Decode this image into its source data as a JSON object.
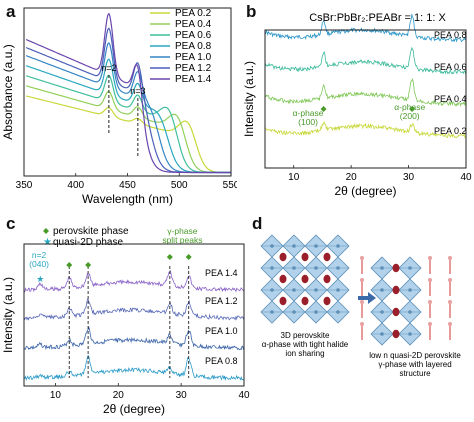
{
  "panels": {
    "a": {
      "letter": "a",
      "chart_data": {
        "type": "line",
        "xlabel": "Wavelength (nm)",
        "ylabel": "Absorbance (a.u.)",
        "xlim": [
          350,
          550
        ],
        "xticks": [
          "350",
          "400",
          "450",
          "500",
          "550"
        ],
        "annotations": [
          "n=2",
          "n=3"
        ],
        "peaks_nm": [
          432,
          460
        ],
        "legend_position": "top-right",
        "series": [
          {
            "name": "PEA 0.2",
            "color": "#c8d83a",
            "edge_nm": 515,
            "height": 0.38
          },
          {
            "name": "PEA 0.4",
            "color": "#93cf5a",
            "edge_nm": 505,
            "height": 0.43
          },
          {
            "name": "PEA 0.6",
            "color": "#3fbf9a",
            "edge_nm": 497,
            "height": 0.48
          },
          {
            "name": "PEA 0.8",
            "color": "#2aa7c0",
            "edge_nm": 489,
            "height": 0.53
          },
          {
            "name": "PEA 1.0",
            "color": "#3484c4",
            "edge_nm": 480,
            "height": 0.58
          },
          {
            "name": "PEA 1.2",
            "color": "#4a5fb8",
            "edge_nm": 472,
            "height": 0.62
          },
          {
            "name": "PEA 1.4",
            "color": "#6a46ae",
            "edge_nm": 465,
            "height": 0.66
          }
        ]
      }
    },
    "b": {
      "letter": "b",
      "chart_data": {
        "type": "line",
        "title": "CsBr:PbBr₂:PEABr = 1: 1: X",
        "xlabel": "2θ (degree)",
        "ylabel": "Intensity (a.u.)",
        "xlim": [
          5,
          40
        ],
        "xticks": [
          "10",
          "20",
          "30",
          "40"
        ],
        "peaks_deg": [
          15.2,
          30.6
        ],
        "annotations": [
          "α-phase\n(100)",
          "α-phase\n(200)"
        ],
        "series": [
          {
            "name": "PEA 0.8",
            "color": "#2b95c8"
          },
          {
            "name": "PEA 0.6",
            "color": "#3bb99a"
          },
          {
            "name": "PEA 0.4",
            "color": "#82c85a"
          },
          {
            "name": "PEA 0.2",
            "color": "#c8d83a"
          }
        ]
      }
    },
    "c": {
      "letter": "c",
      "chart_data": {
        "type": "line",
        "xlabel": "2θ (degree)",
        "ylabel": "Intensity (a.u.)",
        "xlim": [
          5,
          40
        ],
        "xticks": [
          "10",
          "20",
          "30",
          "40"
        ],
        "legend": [
          "perovskite phase",
          "quasi-2D phase"
        ],
        "annotations": [
          "n=2\n(040)",
          "γ-phase\nsplit peaks"
        ],
        "peaks_deg": [
          7.6,
          12.2,
          15.2,
          28.2,
          31.2
        ],
        "series": [
          {
            "name": "PEA 1.4",
            "color": "#8a63c8"
          },
          {
            "name": "PEA 1.2",
            "color": "#5a6ab8"
          },
          {
            "name": "PEA 1.0",
            "color": "#3a63a8"
          },
          {
            "name": "PEA 0.8",
            "color": "#2a9ac8"
          }
        ]
      }
    },
    "d": {
      "letter": "d",
      "left_caption": "3D perovskite\nα-phase with tight halide\nion sharing",
      "right_caption": "low n quasi-2D perovskite\nγ-phase with layered\nstructure"
    }
  }
}
